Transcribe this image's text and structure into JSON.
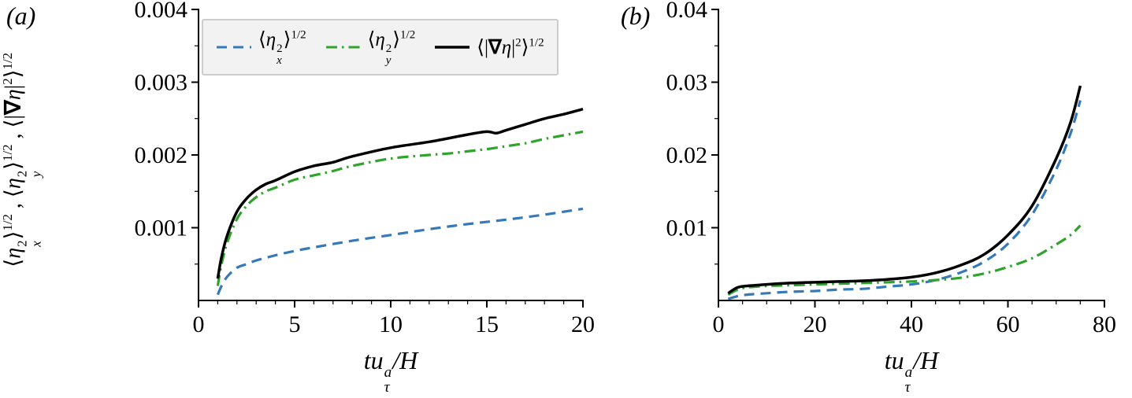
{
  "figure": {
    "panel_a_label": "(a)",
    "panel_b_label": "(b)",
    "colors": {
      "eta_x": "#3579b8",
      "eta_y": "#2fa32c",
      "grad": "#000000"
    }
  },
  "legend": {
    "position": "upper center inside panel a",
    "entries": [
      {
        "id": "eta_x",
        "style": "dashed"
      },
      {
        "id": "eta_y",
        "style": "dashdot"
      },
      {
        "id": "grad",
        "style": "solid"
      }
    ]
  },
  "math": {
    "eta_x": [
      {
        "k": "n",
        "t": "⟨"
      },
      {
        "k": "ss",
        "base": "η",
        "sup": "2",
        "sub": "x",
        "supItalic": false
      },
      {
        "k": "n",
        "t": "⟩"
      },
      {
        "k": "sup",
        "t": "1/2"
      }
    ],
    "eta_y": [
      {
        "k": "n",
        "t": "⟨"
      },
      {
        "k": "ss",
        "base": "η",
        "sup": "2",
        "sub": "y",
        "supItalic": false
      },
      {
        "k": "n",
        "t": "⟩"
      },
      {
        "k": "sup",
        "t": "1/2"
      }
    ],
    "grad": [
      {
        "k": "n",
        "t": "⟨|"
      },
      {
        "k": "b",
        "t": "∇"
      },
      {
        "k": "i",
        "t": "η"
      },
      {
        "k": "n",
        "t": "|"
      },
      {
        "k": "sup",
        "t": "2"
      },
      {
        "k": "n",
        "t": "⟩"
      },
      {
        "k": "sup",
        "t": "1/2"
      }
    ],
    "comma": " , ",
    "xlabel": [
      {
        "k": "i",
        "t": "tu"
      },
      {
        "k": "ss",
        "base": "",
        "sup": "a",
        "sub": "τ",
        "supItalic": true
      },
      {
        "k": "i",
        "t": "/H"
      }
    ]
  },
  "chart_data": [
    {
      "type": "line",
      "panel": "a",
      "title": "",
      "xlabel": "t u_tau^a / H",
      "ylabel": "<eta_x^2>^{1/2}, <eta_y^2>^{1/2}, <|grad eta|^2>^{1/2}",
      "xlim": [
        0,
        20
      ],
      "ylim": [
        0,
        0.004
      ],
      "xticks": [
        {
          "v": 0,
          "label": "0"
        },
        {
          "v": 5,
          "label": "5"
        },
        {
          "v": 10,
          "label": "10"
        },
        {
          "v": 15,
          "label": "15"
        },
        {
          "v": 20,
          "label": "20"
        }
      ],
      "yticks": [
        {
          "v": 0.001,
          "label": "0.001"
        },
        {
          "v": 0.002,
          "label": "0.002"
        },
        {
          "v": 0.003,
          "label": "0.003"
        },
        {
          "v": 0.004,
          "label": "0.004"
        }
      ],
      "xminor_step": 1,
      "yminor_step": 0.0005,
      "grid": false,
      "legend_position": "upper center",
      "series": [
        {
          "name": "eta_x_rms",
          "label": "⟨η_x^2⟩^{1/2}",
          "color_id": "eta_x",
          "style": "dashed",
          "points": [
            [
              1,
              8e-05
            ],
            [
              1.2,
              0.0002
            ],
            [
              1.5,
              0.00033
            ],
            [
              2,
              0.00045
            ],
            [
              2.5,
              0.0005
            ],
            [
              3,
              0.00055
            ],
            [
              4,
              0.00062
            ],
            [
              5,
              0.00068
            ],
            [
              6,
              0.00073
            ],
            [
              8,
              0.00082
            ],
            [
              10,
              0.0009
            ],
            [
              12,
              0.00098
            ],
            [
              14,
              0.00105
            ],
            [
              16,
              0.00111
            ],
            [
              18,
              0.00118
            ],
            [
              20,
              0.00126
            ]
          ]
        },
        {
          "name": "eta_y_rms",
          "label": "⟨η_y^2⟩^{1/2}",
          "color_id": "eta_y",
          "style": "dashdot",
          "points": [
            [
              1,
              0.0002
            ],
            [
              1.2,
              0.0005
            ],
            [
              1.5,
              0.0008
            ],
            [
              2,
              0.00112
            ],
            [
              2.5,
              0.0013
            ],
            [
              3,
              0.00142
            ],
            [
              3.5,
              0.0015
            ],
            [
              4,
              0.00155
            ],
            [
              5,
              0.00166
            ],
            [
              6,
              0.00172
            ],
            [
              7,
              0.00178
            ],
            [
              8,
              0.00185
            ],
            [
              10,
              0.00195
            ],
            [
              12,
              0.002
            ],
            [
              13,
              0.00202
            ],
            [
              14,
              0.00205
            ],
            [
              15,
              0.00208
            ],
            [
              16,
              0.00212
            ],
            [
              17,
              0.00216
            ],
            [
              18,
              0.00222
            ],
            [
              19,
              0.00227
            ],
            [
              20,
              0.00232
            ]
          ]
        },
        {
          "name": "grad_eta_rms",
          "label": "⟨|∇η|^2⟩^{1/2}",
          "color_id": "grad",
          "style": "solid",
          "points": [
            [
              1,
              0.0003
            ],
            [
              1.2,
              0.0006
            ],
            [
              1.5,
              0.0009
            ],
            [
              2,
              0.00122
            ],
            [
              2.5,
              0.0014
            ],
            [
              3,
              0.00152
            ],
            [
              3.5,
              0.0016
            ],
            [
              4,
              0.00165
            ],
            [
              5,
              0.00177
            ],
            [
              6,
              0.00185
            ],
            [
              7,
              0.0019
            ],
            [
              8,
              0.00198
            ],
            [
              10,
              0.0021
            ],
            [
              12,
              0.00218
            ],
            [
              14,
              0.00228
            ],
            [
              15,
              0.00232
            ],
            [
              15.5,
              0.0023
            ],
            [
              16,
              0.00234
            ],
            [
              17,
              0.00242
            ],
            [
              18,
              0.0025
            ],
            [
              19,
              0.00256
            ],
            [
              20,
              0.00263
            ]
          ]
        }
      ]
    },
    {
      "type": "line",
      "panel": "b",
      "title": "",
      "xlabel": "t u_tau^a / H",
      "ylabel": "",
      "xlim": [
        0,
        80
      ],
      "ylim": [
        0,
        0.04
      ],
      "xticks": [
        {
          "v": 0,
          "label": "0"
        },
        {
          "v": 20,
          "label": "20"
        },
        {
          "v": 40,
          "label": "40"
        },
        {
          "v": 60,
          "label": "60"
        },
        {
          "v": 80,
          "label": "80"
        }
      ],
      "yticks": [
        {
          "v": 0.01,
          "label": "0.01"
        },
        {
          "v": 0.02,
          "label": "0.02"
        },
        {
          "v": 0.03,
          "label": "0.03"
        },
        {
          "v": 0.04,
          "label": "0.04"
        }
      ],
      "xminor_step": 5,
      "yminor_step": 0.005,
      "grid": false,
      "legend_position": "none",
      "series": [
        {
          "name": "eta_x_rms",
          "label": "⟨η_x^2⟩^{1/2}",
          "color_id": "eta_x",
          "style": "dashed",
          "points": [
            [
              2,
              0.0002
            ],
            [
              4,
              0.0006
            ],
            [
              6,
              0.0008
            ],
            [
              10,
              0.001
            ],
            [
              15,
              0.0012
            ],
            [
              20,
              0.0013
            ],
            [
              25,
              0.0015
            ],
            [
              30,
              0.0016
            ],
            [
              35,
              0.0019
            ],
            [
              40,
              0.0022
            ],
            [
              45,
              0.0028
            ],
            [
              50,
              0.0038
            ],
            [
              55,
              0.0053
            ],
            [
              60,
              0.0078
            ],
            [
              65,
              0.0118
            ],
            [
              70,
              0.018
            ],
            [
              73,
              0.023
            ],
            [
              75,
              0.0275
            ]
          ]
        },
        {
          "name": "eta_y_rms",
          "label": "⟨η_y^2⟩^{1/2}",
          "color_id": "eta_y",
          "style": "dashdot",
          "points": [
            [
              2,
              0.0008
            ],
            [
              4,
              0.0015
            ],
            [
              6,
              0.0018
            ],
            [
              10,
              0.002
            ],
            [
              15,
              0.0021
            ],
            [
              20,
              0.0022
            ],
            [
              25,
              0.0023
            ],
            [
              30,
              0.0024
            ],
            [
              35,
              0.0025
            ],
            [
              40,
              0.0026
            ],
            [
              45,
              0.0028
            ],
            [
              50,
              0.0031
            ],
            [
              55,
              0.0037
            ],
            [
              60,
              0.0046
            ],
            [
              65,
              0.0058
            ],
            [
              70,
              0.0077
            ],
            [
              73,
              0.009
            ],
            [
              75,
              0.0103
            ]
          ]
        },
        {
          "name": "grad_eta_rms",
          "label": "⟨|∇η|^2⟩^{1/2}",
          "color_id": "grad",
          "style": "solid",
          "points": [
            [
              2,
              0.001
            ],
            [
              4,
              0.0018
            ],
            [
              6,
              0.002
            ],
            [
              10,
              0.0022
            ],
            [
              15,
              0.0024
            ],
            [
              20,
              0.0025
            ],
            [
              25,
              0.0026
            ],
            [
              30,
              0.0027
            ],
            [
              35,
              0.0029
            ],
            [
              40,
              0.0032
            ],
            [
              45,
              0.0038
            ],
            [
              50,
              0.0048
            ],
            [
              55,
              0.0063
            ],
            [
              60,
              0.009
            ],
            [
              65,
              0.013
            ],
            [
              70,
              0.0195
            ],
            [
              73,
              0.0245
            ],
            [
              75,
              0.0295
            ]
          ]
        }
      ]
    }
  ]
}
